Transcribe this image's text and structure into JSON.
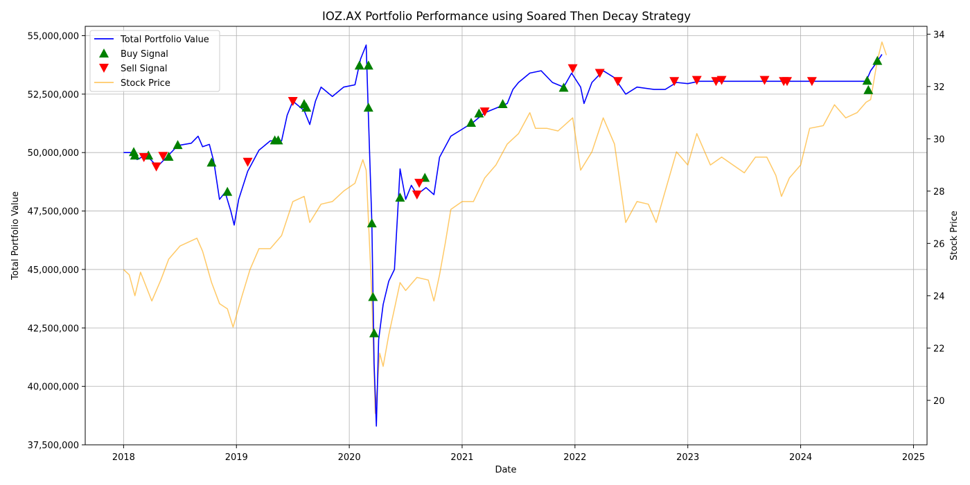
{
  "chart_data": {
    "type": "line",
    "title": "IOZ.AX Portfolio Performance using Soared Then Decay Strategy",
    "xlabel": "Date",
    "ylabel": "Total Portfolio Value",
    "y2label": "Stock Price",
    "xlim": [
      2017.66,
      2025.12
    ],
    "ylim": [
      37500000,
      55400000
    ],
    "y2lim": [
      18.3,
      34.3
    ],
    "x_ticks": [
      2018,
      2019,
      2020,
      2021,
      2022,
      2023,
      2024,
      2025
    ],
    "x_tick_labels": [
      "2018",
      "2019",
      "2020",
      "2021",
      "2022",
      "2023",
      "2024",
      "2025"
    ],
    "y_ticks": [
      37500000,
      40000000,
      42500000,
      45000000,
      47500000,
      50000000,
      52500000,
      55000000
    ],
    "y_tick_labels": [
      "37,500,000",
      "40,000,000",
      "42,500,000",
      "45,000,000",
      "47,500,000",
      "50,000,000",
      "52,500,000",
      "55,000,000"
    ],
    "y2_ticks": [
      20,
      22,
      24,
      26,
      28,
      30,
      32,
      34
    ],
    "y2_tick_labels": [
      "20",
      "22",
      "24",
      "26",
      "28",
      "30",
      "32",
      "34"
    ],
    "grid": true,
    "legend_position": "top-left",
    "legend": [
      {
        "label": "Total Portfolio Value",
        "kind": "line",
        "color": "#0000ff"
      },
      {
        "label": "Buy Signal",
        "kind": "triangle-up",
        "color": "#008000"
      },
      {
        "label": "Sell Signal",
        "kind": "triangle-down",
        "color": "#ff0000"
      },
      {
        "label": "Stock Price",
        "kind": "line",
        "color": "#ffa500"
      }
    ],
    "series": [
      {
        "name": "Total Portfolio Value",
        "axis": "left",
        "color": "#0000ff",
        "points": [
          [
            2018.0,
            50000000
          ],
          [
            2018.08,
            50000000
          ],
          [
            2018.12,
            49700000
          ],
          [
            2018.2,
            49900000
          ],
          [
            2018.3,
            49400000
          ],
          [
            2018.38,
            49800000
          ],
          [
            2018.48,
            50300000
          ],
          [
            2018.6,
            50400000
          ],
          [
            2018.66,
            50700000
          ],
          [
            2018.7,
            50250000
          ],
          [
            2018.76,
            50350000
          ],
          [
            2018.8,
            49600000
          ],
          [
            2018.85,
            48000000
          ],
          [
            2018.9,
            48300000
          ],
          [
            2018.95,
            47500000
          ],
          [
            2018.98,
            46900000
          ],
          [
            2019.02,
            48000000
          ],
          [
            2019.1,
            49200000
          ],
          [
            2019.2,
            50100000
          ],
          [
            2019.3,
            50500000
          ],
          [
            2019.4,
            50500000
          ],
          [
            2019.45,
            51600000
          ],
          [
            2019.5,
            52200000
          ],
          [
            2019.6,
            51800000
          ],
          [
            2019.65,
            51200000
          ],
          [
            2019.7,
            52200000
          ],
          [
            2019.75,
            52800000
          ],
          [
            2019.85,
            52400000
          ],
          [
            2019.95,
            52800000
          ],
          [
            2020.05,
            52900000
          ],
          [
            2020.1,
            54000000
          ],
          [
            2020.15,
            54600000
          ],
          [
            2020.17,
            51500000
          ],
          [
            2020.2,
            47000000
          ],
          [
            2020.22,
            41000000
          ],
          [
            2020.24,
            38300000
          ],
          [
            2020.26,
            42000000
          ],
          [
            2020.3,
            43500000
          ],
          [
            2020.35,
            44500000
          ],
          [
            2020.4,
            45000000
          ],
          [
            2020.43,
            47500000
          ],
          [
            2020.45,
            49300000
          ],
          [
            2020.5,
            48000000
          ],
          [
            2020.55,
            48600000
          ],
          [
            2020.6,
            48200000
          ],
          [
            2020.68,
            48500000
          ],
          [
            2020.75,
            48200000
          ],
          [
            2020.8,
            49800000
          ],
          [
            2020.9,
            50700000
          ],
          [
            2021.0,
            51000000
          ],
          [
            2021.1,
            51300000
          ],
          [
            2021.2,
            51700000
          ],
          [
            2021.3,
            51900000
          ],
          [
            2021.4,
            52100000
          ],
          [
            2021.45,
            52700000
          ],
          [
            2021.5,
            53000000
          ],
          [
            2021.6,
            53400000
          ],
          [
            2021.7,
            53500000
          ],
          [
            2021.8,
            53000000
          ],
          [
            2021.9,
            52800000
          ],
          [
            2021.97,
            53400000
          ],
          [
            2022.05,
            52800000
          ],
          [
            2022.08,
            52100000
          ],
          [
            2022.15,
            53000000
          ],
          [
            2022.25,
            53500000
          ],
          [
            2022.35,
            53200000
          ],
          [
            2022.45,
            52500000
          ],
          [
            2022.55,
            52800000
          ],
          [
            2022.7,
            52700000
          ],
          [
            2022.8,
            52700000
          ],
          [
            2022.9,
            53000000
          ],
          [
            2023.0,
            52950000
          ],
          [
            2023.1,
            53050000
          ],
          [
            2023.3,
            53050000
          ],
          [
            2023.6,
            53050000
          ],
          [
            2023.9,
            53050000
          ],
          [
            2024.2,
            53050000
          ],
          [
            2024.5,
            53050000
          ],
          [
            2024.58,
            53050000
          ],
          [
            2024.62,
            53500000
          ],
          [
            2024.68,
            53900000
          ],
          [
            2024.72,
            54200000
          ]
        ]
      },
      {
        "name": "Stock Price",
        "axis": "right",
        "color": "#ffa500",
        "points": [
          [
            2018.0,
            25.0
          ],
          [
            2018.05,
            24.8
          ],
          [
            2018.1,
            24.0
          ],
          [
            2018.15,
            24.9
          ],
          [
            2018.25,
            23.8
          ],
          [
            2018.33,
            24.6
          ],
          [
            2018.4,
            25.4
          ],
          [
            2018.5,
            25.9
          ],
          [
            2018.65,
            26.2
          ],
          [
            2018.7,
            25.7
          ],
          [
            2018.78,
            24.5
          ],
          [
            2018.85,
            23.7
          ],
          [
            2018.92,
            23.5
          ],
          [
            2018.97,
            22.8
          ],
          [
            2019.05,
            24.0
          ],
          [
            2019.12,
            25.0
          ],
          [
            2019.2,
            25.8
          ],
          [
            2019.3,
            25.8
          ],
          [
            2019.4,
            26.3
          ],
          [
            2019.5,
            27.6
          ],
          [
            2019.6,
            27.8
          ],
          [
            2019.65,
            26.8
          ],
          [
            2019.75,
            27.5
          ],
          [
            2019.85,
            27.6
          ],
          [
            2019.95,
            28.0
          ],
          [
            2020.05,
            28.3
          ],
          [
            2020.12,
            29.2
          ],
          [
            2020.15,
            28.8
          ],
          [
            2020.2,
            24.0
          ],
          [
            2020.23,
            19.5
          ],
          [
            2020.27,
            21.8
          ],
          [
            2020.3,
            21.3
          ],
          [
            2020.35,
            22.5
          ],
          [
            2020.4,
            23.5
          ],
          [
            2020.45,
            24.5
          ],
          [
            2020.5,
            24.2
          ],
          [
            2020.6,
            24.7
          ],
          [
            2020.7,
            24.6
          ],
          [
            2020.75,
            23.8
          ],
          [
            2020.8,
            24.8
          ],
          [
            2020.85,
            26.0
          ],
          [
            2020.9,
            27.3
          ],
          [
            2021.0,
            27.6
          ],
          [
            2021.1,
            27.6
          ],
          [
            2021.2,
            28.5
          ],
          [
            2021.3,
            29.0
          ],
          [
            2021.4,
            29.8
          ],
          [
            2021.5,
            30.2
          ],
          [
            2021.6,
            31.0
          ],
          [
            2021.65,
            30.4
          ],
          [
            2021.75,
            30.4
          ],
          [
            2021.85,
            30.3
          ],
          [
            2021.98,
            30.8
          ],
          [
            2022.05,
            28.8
          ],
          [
            2022.15,
            29.5
          ],
          [
            2022.25,
            30.8
          ],
          [
            2022.35,
            29.8
          ],
          [
            2022.45,
            26.8
          ],
          [
            2022.55,
            27.6
          ],
          [
            2022.65,
            27.5
          ],
          [
            2022.72,
            26.8
          ],
          [
            2022.8,
            28.0
          ],
          [
            2022.9,
            29.5
          ],
          [
            2023.0,
            29.0
          ],
          [
            2023.08,
            30.2
          ],
          [
            2023.2,
            29.0
          ],
          [
            2023.3,
            29.3
          ],
          [
            2023.4,
            29.0
          ],
          [
            2023.5,
            28.7
          ],
          [
            2023.6,
            29.3
          ],
          [
            2023.7,
            29.3
          ],
          [
            2023.78,
            28.6
          ],
          [
            2023.83,
            27.8
          ],
          [
            2023.9,
            28.5
          ],
          [
            2024.0,
            29.0
          ],
          [
            2024.08,
            30.4
          ],
          [
            2024.2,
            30.5
          ],
          [
            2024.3,
            31.3
          ],
          [
            2024.4,
            30.8
          ],
          [
            2024.5,
            31.0
          ],
          [
            2024.58,
            31.4
          ],
          [
            2024.62,
            31.5
          ],
          [
            2024.68,
            33.0
          ],
          [
            2024.72,
            33.7
          ],
          [
            2024.76,
            33.2
          ]
        ]
      }
    ],
    "buy_signals": [
      [
        2018.09,
        50000000
      ],
      [
        2018.1,
        49850000
      ],
      [
        2018.22,
        49850000
      ],
      [
        2018.4,
        49800000
      ],
      [
        2018.48,
        50300000
      ],
      [
        2018.78,
        49550000
      ],
      [
        2018.92,
        48300000
      ],
      [
        2019.34,
        50500000
      ],
      [
        2019.37,
        50500000
      ],
      [
        2019.6,
        52050000
      ],
      [
        2019.62,
        51900000
      ],
      [
        2020.09,
        53700000
      ],
      [
        2020.17,
        53700000
      ],
      [
        2020.17,
        51900000
      ],
      [
        2020.2,
        46950000
      ],
      [
        2020.21,
        43800000
      ],
      [
        2020.22,
        42250000
      ],
      [
        2020.45,
        48050000
      ],
      [
        2020.67,
        48900000
      ],
      [
        2021.08,
        51250000
      ],
      [
        2021.15,
        51650000
      ],
      [
        2021.36,
        52050000
      ],
      [
        2021.9,
        52750000
      ],
      [
        2024.59,
        53050000
      ],
      [
        2024.6,
        52650000
      ],
      [
        2024.68,
        53900000
      ]
    ],
    "sell_signals": [
      [
        2018.18,
        49800000
      ],
      [
        2018.29,
        49400000
      ],
      [
        2018.35,
        49850000
      ],
      [
        2019.1,
        49600000
      ],
      [
        2019.5,
        52200000
      ],
      [
        2020.6,
        48200000
      ],
      [
        2020.62,
        48700000
      ],
      [
        2021.2,
        51750000
      ],
      [
        2021.98,
        53600000
      ],
      [
        2022.22,
        53400000
      ],
      [
        2022.38,
        53050000
      ],
      [
        2022.88,
        53050000
      ],
      [
        2023.08,
        53100000
      ],
      [
        2023.25,
        53050000
      ],
      [
        2023.3,
        53100000
      ],
      [
        2023.68,
        53100000
      ],
      [
        2023.85,
        53050000
      ],
      [
        2023.88,
        53050000
      ],
      [
        2024.1,
        53050000
      ]
    ]
  }
}
